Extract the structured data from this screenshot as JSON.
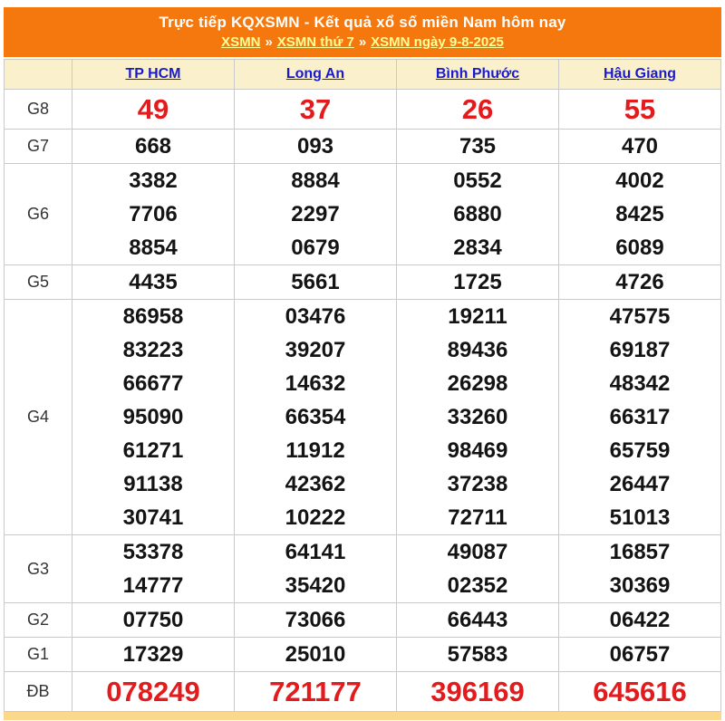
{
  "header": {
    "title": "Trực tiếp KQXSMN - Kết quả xổ số miền Nam hôm nay",
    "separator": "»",
    "breadcrumb": [
      {
        "label": "XSMN"
      },
      {
        "label": "XSMN thứ 7"
      },
      {
        "label": "XSMN ngày 9-8-2025"
      }
    ]
  },
  "table": {
    "columns": [
      "TP HCM",
      "Long An",
      "Bình Phước",
      "Hậu Giang"
    ],
    "rows": [
      {
        "prize": "G8",
        "highlight": true,
        "values": [
          [
            "49"
          ],
          [
            "37"
          ],
          [
            "26"
          ],
          [
            "55"
          ]
        ]
      },
      {
        "prize": "G7",
        "highlight": false,
        "values": [
          [
            "668"
          ],
          [
            "093"
          ],
          [
            "735"
          ],
          [
            "470"
          ]
        ]
      },
      {
        "prize": "G6",
        "highlight": false,
        "values": [
          [
            "3382",
            "7706",
            "8854"
          ],
          [
            "8884",
            "2297",
            "0679"
          ],
          [
            "0552",
            "6880",
            "2834"
          ],
          [
            "4002",
            "8425",
            "6089"
          ]
        ]
      },
      {
        "prize": "G5",
        "highlight": false,
        "values": [
          [
            "4435"
          ],
          [
            "5661"
          ],
          [
            "1725"
          ],
          [
            "4726"
          ]
        ]
      },
      {
        "prize": "G4",
        "highlight": false,
        "values": [
          [
            "86958",
            "83223",
            "66677",
            "95090",
            "61271",
            "91138",
            "30741"
          ],
          [
            "03476",
            "39207",
            "14632",
            "66354",
            "11912",
            "42362",
            "10222"
          ],
          [
            "19211",
            "89436",
            "26298",
            "33260",
            "98469",
            "37238",
            "72711"
          ],
          [
            "47575",
            "69187",
            "48342",
            "66317",
            "65759",
            "26447",
            "51013"
          ]
        ]
      },
      {
        "prize": "G3",
        "highlight": false,
        "values": [
          [
            "53378",
            "14777"
          ],
          [
            "64141",
            "35420"
          ],
          [
            "49087",
            "02352"
          ],
          [
            "16857",
            "30369"
          ]
        ]
      },
      {
        "prize": "G2",
        "highlight": false,
        "values": [
          [
            "07750"
          ],
          [
            "73066"
          ],
          [
            "66443"
          ],
          [
            "06422"
          ]
        ]
      },
      {
        "prize": "G1",
        "highlight": false,
        "values": [
          [
            "17329"
          ],
          [
            "25010"
          ],
          [
            "57583"
          ],
          [
            "06757"
          ]
        ]
      },
      {
        "prize": "ĐB",
        "highlight": true,
        "values": [
          [
            "078249"
          ],
          [
            "721177"
          ],
          [
            "396169"
          ],
          [
            "645616"
          ]
        ]
      }
    ]
  },
  "colors": {
    "banner_orange": "#f5780e",
    "breadcrumb_link": "#ffff99",
    "column_header_bg": "#faf0cb",
    "province_link_blue": "#1a1acd",
    "highlight_red": "#e31b1d",
    "number_black": "#141414",
    "border_gray": "#c9c9c9",
    "bottom_strip": "#fbd88c"
  }
}
